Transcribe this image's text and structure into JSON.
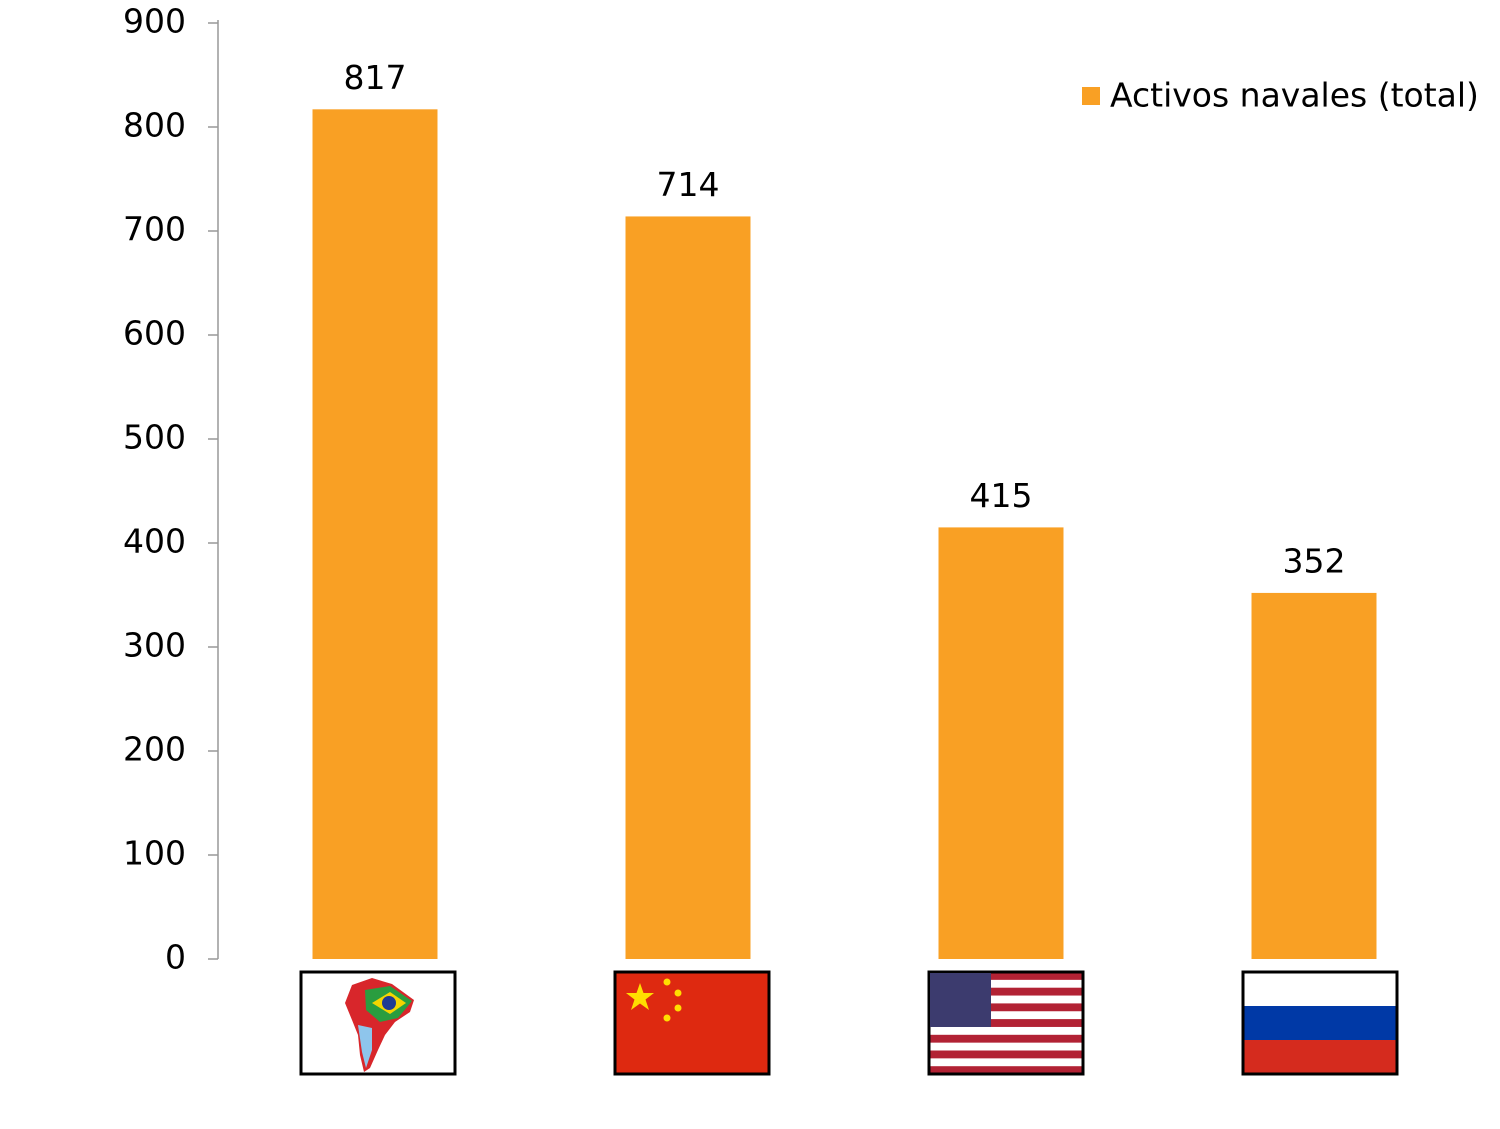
{
  "chart_data": {
    "type": "bar",
    "categories": [
      null,
      null,
      null,
      null
    ],
    "series": [
      {
        "name": "Activos navales (total)",
        "color": "#f9a024",
        "values": [
          817,
          714,
          415,
          352
        ]
      }
    ],
    "ylim": [
      0,
      900
    ],
    "yticks": [
      0,
      100,
      200,
      300,
      400,
      500,
      600,
      700,
      800,
      900
    ],
    "grid": false,
    "legend": "top-right"
  }
}
